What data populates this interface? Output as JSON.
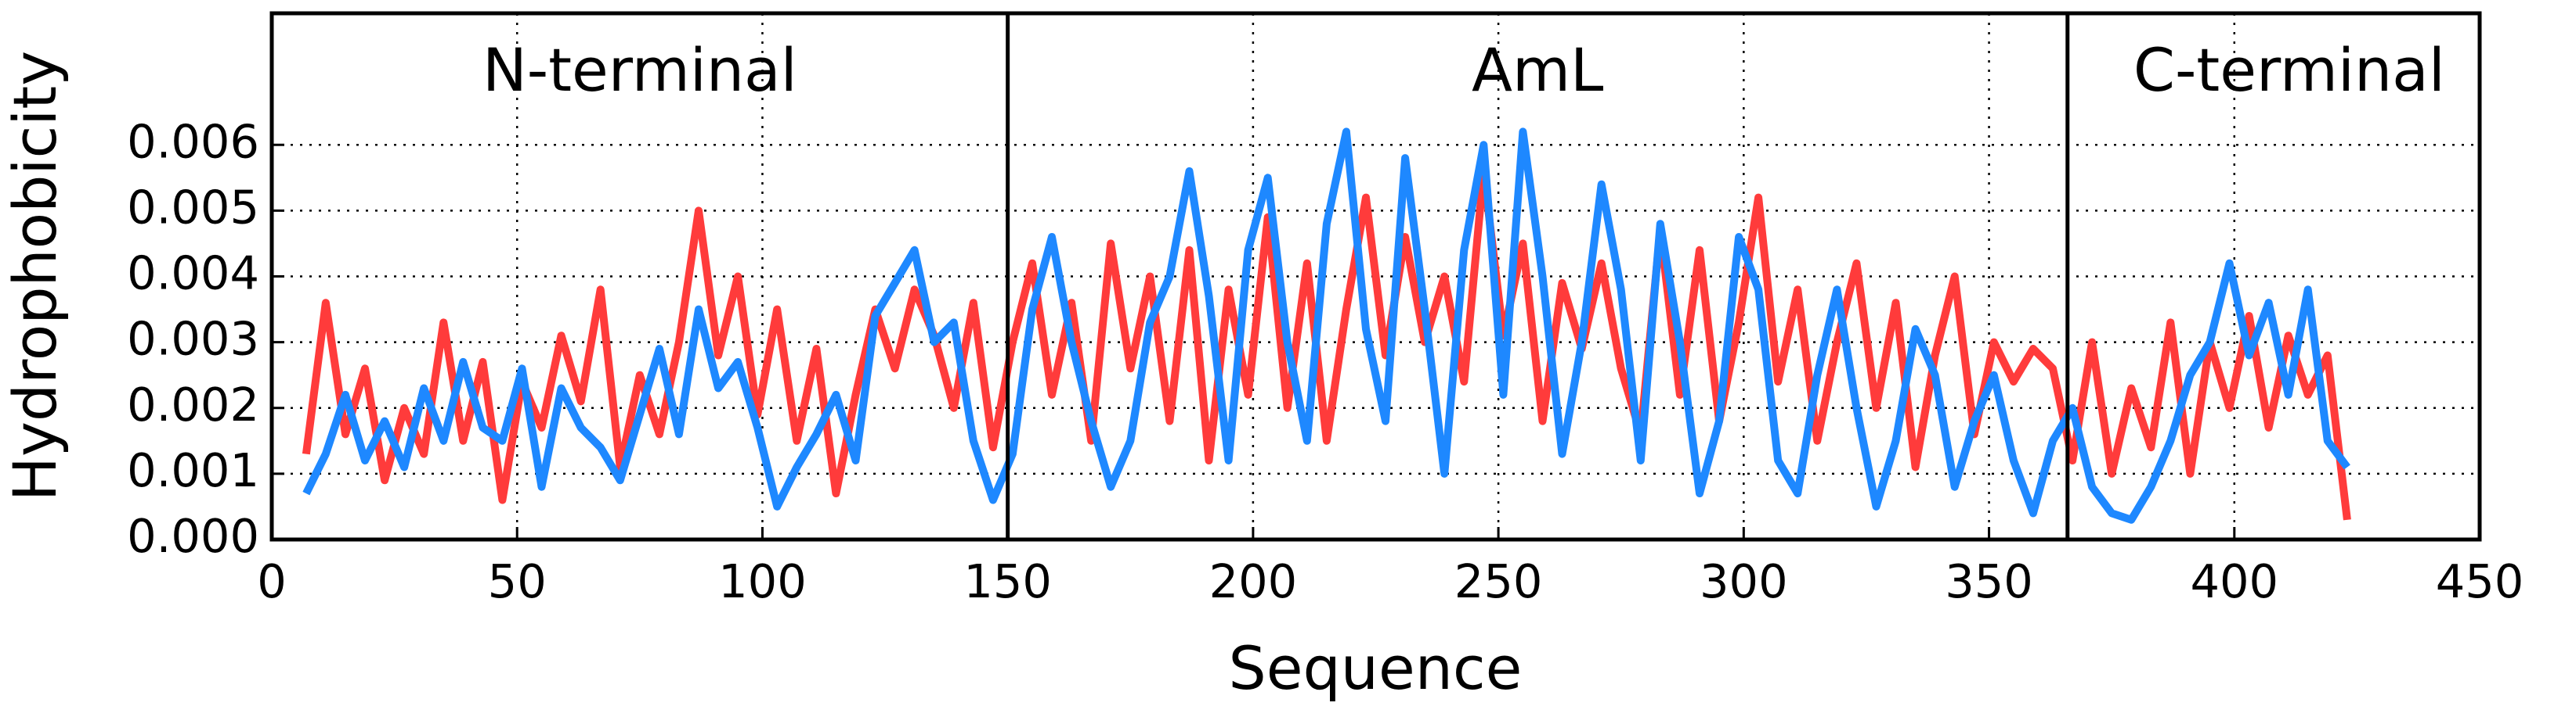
{
  "chart_data": {
    "type": "line",
    "xlabel": "Sequence",
    "ylabel": "Hydrophobicity",
    "region_labels": [
      "N-terminal",
      "AmL",
      "C-terminal"
    ],
    "boundaries": [
      150,
      366
    ],
    "x": [
      7,
      11,
      15,
      19,
      23,
      27,
      31,
      35,
      39,
      43,
      47,
      51,
      55,
      59,
      63,
      67,
      71,
      75,
      79,
      83,
      87,
      91,
      95,
      99,
      103,
      107,
      111,
      115,
      119,
      123,
      127,
      131,
      135,
      139,
      143,
      147,
      151,
      155,
      159,
      163,
      167,
      171,
      175,
      179,
      183,
      187,
      191,
      195,
      199,
      203,
      207,
      211,
      215,
      219,
      223,
      227,
      231,
      235,
      239,
      243,
      247,
      251,
      255,
      259,
      263,
      267,
      271,
      275,
      279,
      283,
      287,
      291,
      295,
      299,
      303,
      307,
      311,
      315,
      319,
      323,
      327,
      331,
      335,
      339,
      343,
      347,
      351,
      355,
      359,
      363,
      367,
      371,
      375,
      379,
      383,
      387,
      391,
      395,
      399,
      403,
      407,
      411,
      415,
      419,
      423
    ],
    "series": [
      {
        "color": "#ff3b3b",
        "values": [
          0.0013,
          0.0036,
          0.0016,
          0.0026,
          0.0009,
          0.002,
          0.0013,
          0.0033,
          0.0015,
          0.0027,
          0.0006,
          0.0024,
          0.0017,
          0.0031,
          0.0021,
          0.0038,
          0.0011,
          0.0025,
          0.0016,
          0.003,
          0.005,
          0.0028,
          0.004,
          0.0019,
          0.0035,
          0.0015,
          0.0029,
          0.0007,
          0.0022,
          0.0035,
          0.0026,
          0.0038,
          0.0031,
          0.002,
          0.0036,
          0.0014,
          0.003,
          0.0042,
          0.0022,
          0.0036,
          0.0015,
          0.0045,
          0.0026,
          0.004,
          0.0018,
          0.0044,
          0.0012,
          0.0038,
          0.0022,
          0.0049,
          0.002,
          0.0042,
          0.0015,
          0.0035,
          0.0052,
          0.0028,
          0.0046,
          0.003,
          0.004,
          0.0024,
          0.0056,
          0.0031,
          0.0045,
          0.0018,
          0.0039,
          0.0029,
          0.0042,
          0.0026,
          0.0016,
          0.0047,
          0.0022,
          0.0044,
          0.0018,
          0.0033,
          0.0052,
          0.0024,
          0.0038,
          0.0015,
          0.003,
          0.0042,
          0.002,
          0.0036,
          0.0011,
          0.0028,
          0.004,
          0.0016,
          0.003,
          0.0024,
          0.0029,
          0.0026,
          0.0012,
          0.003,
          0.001,
          0.0023,
          0.0014,
          0.0033,
          0.001,
          0.003,
          0.002,
          0.0034,
          0.0017,
          0.0031,
          0.0022,
          0.0028,
          0.0003
        ]
      },
      {
        "color": "#1e88ff",
        "values": [
          0.0007,
          0.0013,
          0.0022,
          0.0012,
          0.0018,
          0.0011,
          0.0023,
          0.0015,
          0.0027,
          0.0017,
          0.0015,
          0.0026,
          0.0008,
          0.0023,
          0.0017,
          0.0014,
          0.0009,
          0.0019,
          0.0029,
          0.0016,
          0.0035,
          0.0023,
          0.0027,
          0.0017,
          0.0005,
          0.0011,
          0.0016,
          0.0022,
          0.0012,
          0.0034,
          0.0039,
          0.0044,
          0.003,
          0.0033,
          0.0015,
          0.0006,
          0.0013,
          0.0035,
          0.0046,
          0.003,
          0.0018,
          0.0008,
          0.0015,
          0.0033,
          0.004,
          0.0056,
          0.0037,
          0.0012,
          0.0044,
          0.0055,
          0.003,
          0.0015,
          0.0048,
          0.0062,
          0.0032,
          0.0018,
          0.0058,
          0.0035,
          0.001,
          0.0044,
          0.006,
          0.0022,
          0.0062,
          0.004,
          0.0013,
          0.003,
          0.0054,
          0.0038,
          0.0012,
          0.0048,
          0.003,
          0.0007,
          0.0018,
          0.0046,
          0.0038,
          0.0012,
          0.0007,
          0.0025,
          0.0038,
          0.002,
          0.0005,
          0.0015,
          0.0032,
          0.0025,
          0.0008,
          0.0018,
          0.0025,
          0.0012,
          0.0004,
          0.0015,
          0.002,
          0.0008,
          0.0004,
          0.0003,
          0.0008,
          0.0015,
          0.0025,
          0.003,
          0.0042,
          0.0028,
          0.0036,
          0.0022,
          0.0038,
          0.0015,
          0.0011
        ]
      }
    ],
    "xlim": [
      0,
      450
    ],
    "xticks": [
      0,
      50,
      100,
      150,
      200,
      250,
      300,
      350,
      400,
      450
    ],
    "ylim": [
      0,
      0.008
    ],
    "yticks": [
      {
        "value": 0,
        "label": "0.000"
      },
      0.001,
      0.002,
      0.003,
      0.004,
      0.005,
      0.006
    ],
    "grid": true
  }
}
